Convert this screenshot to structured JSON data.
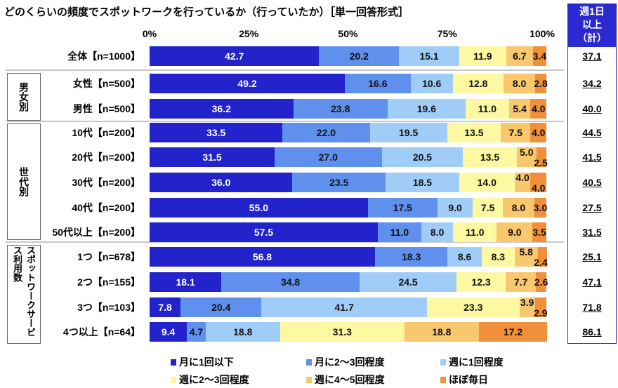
{
  "chart_data": {
    "type": "bar",
    "orientation": "horizontal-stacked-100",
    "title": "どのくらいの頻度でスポットワークを行っているか（行っていたか）［単一回答形式］",
    "x_ticks": [
      "0%",
      "25%",
      "50%",
      "75%",
      "100%"
    ],
    "xlim": [
      0,
      100
    ],
    "legend_position": "bottom",
    "series_names": [
      "月に1回以下",
      "月に2～3回程度",
      "週に1回程度",
      "週に2～3回程度",
      "週に4～5回程度",
      "ほぼ毎日"
    ],
    "colors": [
      "#2323cc",
      "#5f90ee",
      "#a0ccf8",
      "#fdf9a2",
      "#f8c76e",
      "#f0903a"
    ],
    "groups": [
      {
        "label": "",
        "rows": [
          0
        ]
      },
      {
        "label": "男女別",
        "rows": [
          1,
          2
        ]
      },
      {
        "label": "世代別",
        "rows": [
          3,
          4,
          5,
          6,
          7
        ]
      },
      {
        "label": "スポットワークサービス利用数",
        "rows": [
          8,
          9,
          10,
          11
        ]
      }
    ],
    "rows": [
      {
        "label": "全体【n=1000】",
        "values": [
          42.7,
          20.2,
          15.1,
          11.9,
          6.7,
          3.4
        ],
        "weekly_total": "37.1"
      },
      {
        "label": "女性【n=500】",
        "values": [
          49.2,
          16.6,
          10.6,
          12.8,
          8.0,
          2.8
        ],
        "weekly_total": "34.2"
      },
      {
        "label": "男性【n=500】",
        "values": [
          36.2,
          23.8,
          19.6,
          11.0,
          5.4,
          4.0
        ],
        "weekly_total": "40.0"
      },
      {
        "label": "10代【n=200】",
        "values": [
          33.5,
          22.0,
          19.5,
          13.5,
          7.5,
          4.0
        ],
        "weekly_total": "44.5"
      },
      {
        "label": "20代【n=200】",
        "values": [
          31.5,
          27.0,
          20.5,
          13.5,
          5.0,
          2.5
        ],
        "weekly_total": "41.5"
      },
      {
        "label": "30代【n=200】",
        "values": [
          36.0,
          23.5,
          18.5,
          14.0,
          4.0,
          4.0
        ],
        "weekly_total": "40.5"
      },
      {
        "label": "40代【n=200】",
        "values": [
          55.0,
          17.5,
          9.0,
          7.5,
          8.0,
          3.0
        ],
        "weekly_total": "27.5"
      },
      {
        "label": "50代以上【n=200】",
        "values": [
          57.5,
          11.0,
          8.0,
          11.0,
          9.0,
          3.5
        ],
        "weekly_total": "31.5"
      },
      {
        "label": "1つ【n=678】",
        "values": [
          56.8,
          18.3,
          8.6,
          8.3,
          5.8,
          2.4
        ],
        "weekly_total": "25.1"
      },
      {
        "label": "2つ【n=155】",
        "values": [
          18.1,
          34.8,
          24.5,
          12.3,
          7.7,
          2.6
        ],
        "weekly_total": "47.1"
      },
      {
        "label": "3つ【n=103】",
        "values": [
          7.8,
          20.4,
          41.7,
          23.3,
          3.9,
          2.9
        ],
        "weekly_total": "71.8"
      },
      {
        "label": "4つ以上【n=64】",
        "values": [
          9.4,
          4.7,
          18.8,
          31.3,
          18.8,
          17.2
        ],
        "weekly_total": "86.1"
      }
    ],
    "weekly_header": [
      "週1日",
      "以上",
      "（計）"
    ]
  }
}
